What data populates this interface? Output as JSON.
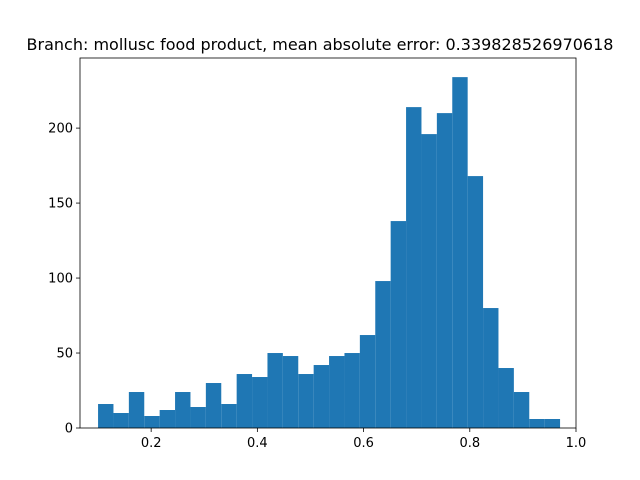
{
  "chart_data": {
    "type": "bar",
    "title": "Branch: mollusc food product, mean absolute error: 0.339828526970618",
    "xlabel": "",
    "ylabel": "",
    "xlim": [
      0.066,
      1.0
    ],
    "ylim": [
      0,
      246.75
    ],
    "bar_color": "#1f77b4",
    "x_ticks": [
      {
        "value": 0.2,
        "label": "0.2"
      },
      {
        "value": 0.4,
        "label": "0.4"
      },
      {
        "value": 0.6,
        "label": "0.6"
      },
      {
        "value": 0.8,
        "label": "0.8"
      },
      {
        "value": 1.0,
        "label": "1.0"
      }
    ],
    "y_ticks": [
      {
        "value": 0,
        "label": "0"
      },
      {
        "value": 50,
        "label": "50"
      },
      {
        "value": 100,
        "label": "100"
      },
      {
        "value": 150,
        "label": "150"
      },
      {
        "value": 200,
        "label": "200"
      }
    ],
    "bin_edges": [
      0.1,
      0.129,
      0.158,
      0.187,
      0.216,
      0.245,
      0.274,
      0.303,
      0.332,
      0.361,
      0.39,
      0.419,
      0.448,
      0.477,
      0.506,
      0.535,
      0.564,
      0.593,
      0.622,
      0.651,
      0.68,
      0.709,
      0.738,
      0.767,
      0.796,
      0.825,
      0.854,
      0.883,
      0.912,
      0.941,
      0.97
    ],
    "values": [
      16,
      10,
      24,
      8,
      12,
      24,
      14,
      30,
      16,
      36,
      34,
      50,
      48,
      36,
      42,
      48,
      50,
      62,
      98,
      138,
      214,
      196,
      210,
      234,
      168,
      80,
      40,
      24,
      6,
      6
    ]
  }
}
